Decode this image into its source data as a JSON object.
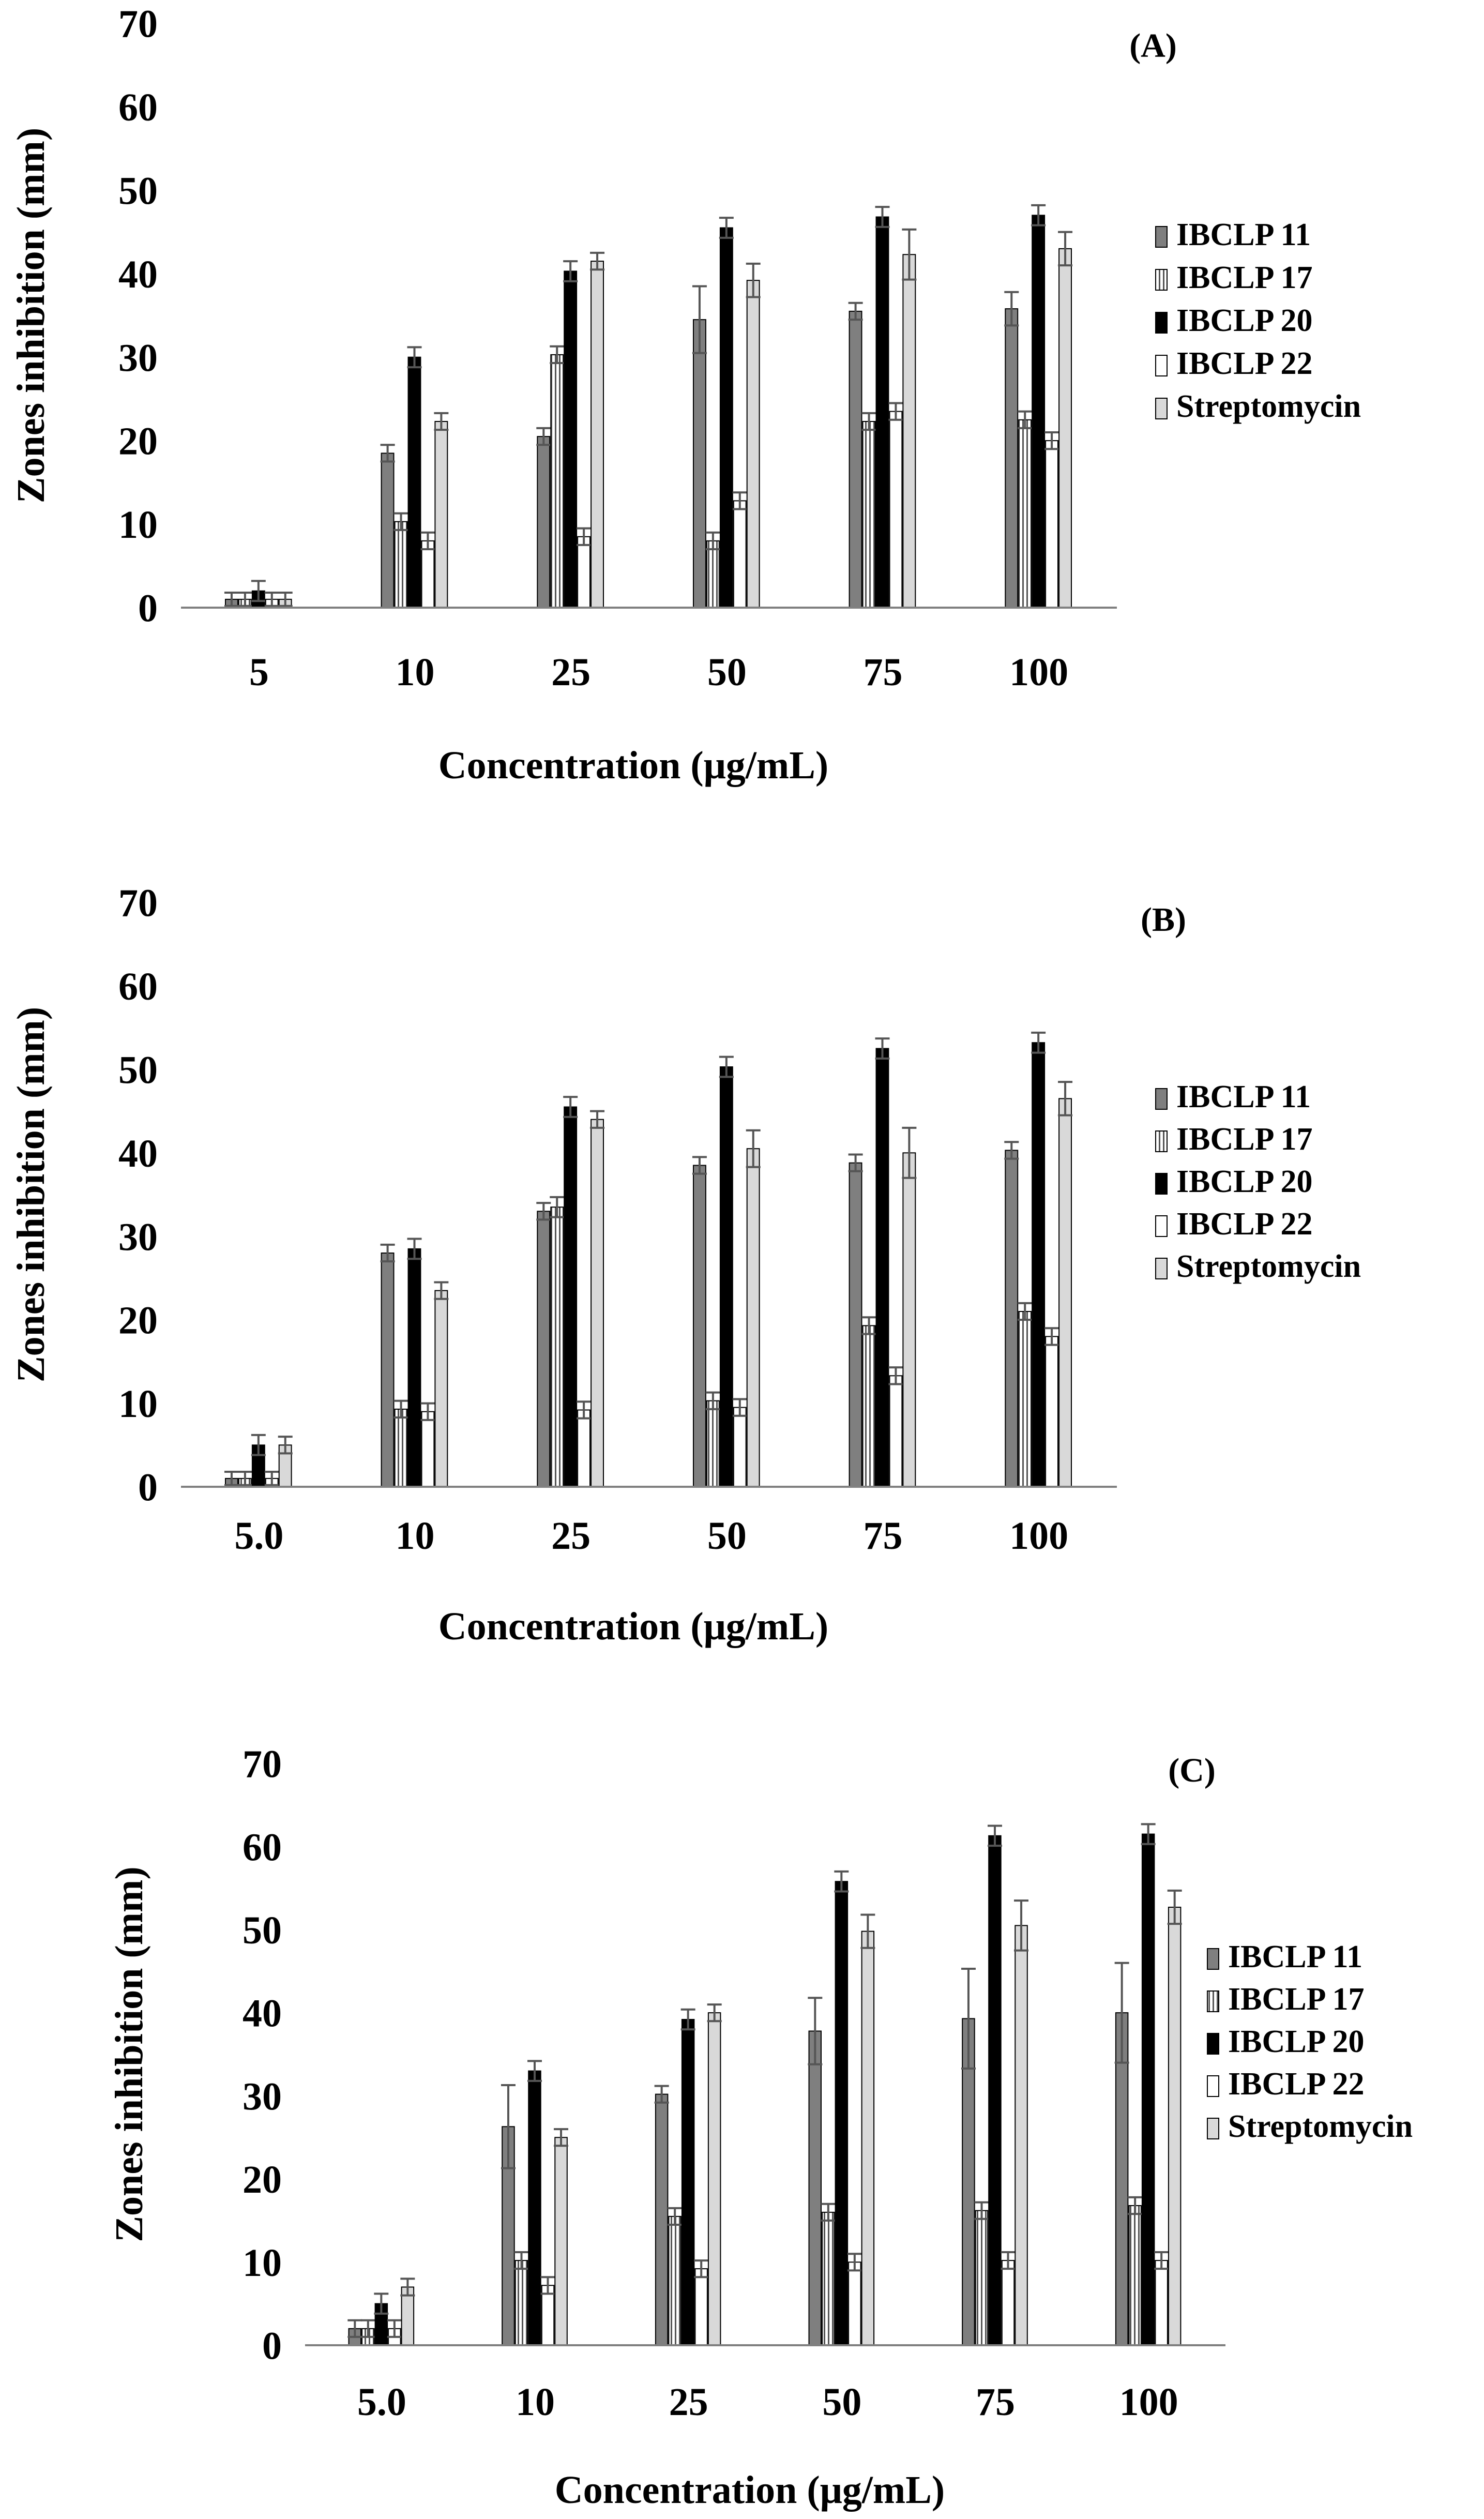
{
  "chart_data": [
    {
      "type": "bar",
      "panel_label": "(A)",
      "xlabel": "Concentration (μg/mL)",
      "ylabel": "Zones inhibition (mm)",
      "ylim": [
        0,
        70
      ],
      "yticks": [
        "0",
        "10",
        "20",
        "30",
        "40",
        "50",
        "60",
        "70"
      ],
      "grid": false,
      "legend_position": "right",
      "categories": [
        "5",
        "10",
        "25",
        "50",
        "75",
        "100"
      ],
      "series": [
        {
          "name": "IBCLP 11",
          "values": [
            1,
            18.5,
            20.5,
            34.5,
            35.5,
            35.8
          ],
          "errors": [
            0.8,
            1.0,
            1.0,
            4.0,
            1.0,
            2.0
          ]
        },
        {
          "name": "IBCLP 17",
          "values": [
            1,
            10.3,
            30.3,
            8.0,
            22.3,
            22.5
          ],
          "errors": [
            0.8,
            1.0,
            1.0,
            1.0,
            1.0,
            1.0
          ]
        },
        {
          "name": "IBCLP 20",
          "values": [
            2,
            30.0,
            40.3,
            45.5,
            46.8,
            47.0
          ],
          "errors": [
            1.2,
            1.2,
            1.2,
            1.2,
            1.2,
            1.2
          ]
        },
        {
          "name": "IBCLP 22",
          "values": [
            1,
            8.0,
            8.5,
            12.8,
            23.5,
            20.0
          ],
          "errors": [
            0.8,
            1.0,
            1.0,
            1.0,
            1.0,
            1.0
          ]
        },
        {
          "name": "Streptomycin",
          "values": [
            1,
            22.3,
            41.5,
            39.2,
            42.3,
            43.0
          ],
          "errors": [
            0.8,
            1.0,
            1.0,
            2.0,
            3.0,
            2.0
          ]
        }
      ]
    },
    {
      "type": "bar",
      "panel_label": "(B)",
      "xlabel": "Concentration (μg/mL)",
      "ylabel": "Zones inhibition (mm)",
      "ylim": [
        0,
        70
      ],
      "yticks": [
        "0",
        "10",
        "20",
        "30",
        "40",
        "50",
        "60",
        "70"
      ],
      "grid": false,
      "legend_position": "right",
      "categories": [
        "5.0",
        "10",
        "25",
        "50",
        "75",
        "100"
      ],
      "series": [
        {
          "name": "IBCLP 11",
          "values": [
            1,
            28.0,
            33.0,
            38.5,
            38.8,
            40.3
          ],
          "errors": [
            0.8,
            1.0,
            1.0,
            1.0,
            1.0,
            1.0
          ]
        },
        {
          "name": "IBCLP 17",
          "values": [
            1,
            9.3,
            33.5,
            10.3,
            19.3,
            21.0
          ],
          "errors": [
            0.8,
            1.0,
            1.2,
            1.0,
            1.0,
            1.0
          ]
        },
        {
          "name": "IBCLP 20",
          "values": [
            5,
            28.5,
            45.5,
            50.3,
            52.5,
            53.2
          ],
          "errors": [
            1.2,
            1.2,
            1.2,
            1.2,
            1.2,
            1.2
          ]
        },
        {
          "name": "IBCLP 22",
          "values": [
            1,
            9.0,
            9.2,
            9.5,
            13.3,
            18.0
          ],
          "errors": [
            0.8,
            1.0,
            1.0,
            1.0,
            1.0,
            1.0
          ]
        },
        {
          "name": "Streptomycin",
          "values": [
            5,
            23.5,
            44.0,
            40.5,
            40.0,
            46.5
          ],
          "errors": [
            1.0,
            1.0,
            1.0,
            2.2,
            3.0,
            2.0
          ]
        }
      ]
    },
    {
      "type": "bar",
      "panel_label": "(C)",
      "xlabel": "Concentration (μg/mL)",
      "ylabel": "Zones inhibition (mm)",
      "ylim": [
        0,
        70
      ],
      "yticks": [
        "0",
        "10",
        "20",
        "30",
        "40",
        "50",
        "60",
        "70"
      ],
      "grid": false,
      "legend_position": "right",
      "categories": [
        "5.0",
        "10",
        "25",
        "50",
        "75",
        "100"
      ],
      "series": [
        {
          "name": "IBCLP 11",
          "values": [
            2,
            26.3,
            30.2,
            37.8,
            39.3,
            40.0
          ],
          "errors": [
            1.0,
            5.0,
            1.0,
            4.0,
            6.0,
            6.0
          ]
        },
        {
          "name": "IBCLP 17",
          "values": [
            2,
            10.2,
            15.5,
            16.0,
            16.2,
            16.8
          ],
          "errors": [
            1.0,
            1.0,
            1.0,
            1.0,
            1.0,
            1.0
          ]
        },
        {
          "name": "IBCLP 20",
          "values": [
            5,
            33.0,
            39.2,
            55.8,
            61.3,
            61.5
          ],
          "errors": [
            1.2,
            1.2,
            1.2,
            1.2,
            1.2,
            1.2
          ]
        },
        {
          "name": "IBCLP 22",
          "values": [
            2,
            7.2,
            9.2,
            10.0,
            10.2,
            10.2
          ],
          "errors": [
            1.0,
            1.0,
            1.0,
            1.0,
            1.0,
            1.0
          ]
        },
        {
          "name": "Streptomycin",
          "values": [
            7,
            25.0,
            40.0,
            49.8,
            50.5,
            52.7
          ],
          "errors": [
            1.0,
            1.0,
            1.0,
            2.0,
            3.0,
            2.0
          ]
        }
      ]
    }
  ],
  "colors": {
    "ibclp11": "#7f7f7f",
    "ibclp17": "#ffffff",
    "ibclp20": "#000000",
    "ibclp22": "#ffffff",
    "streptomycin": "#d9d9d9",
    "axis": "#808080",
    "stroke": "#000000",
    "errorbar": "#555555"
  }
}
